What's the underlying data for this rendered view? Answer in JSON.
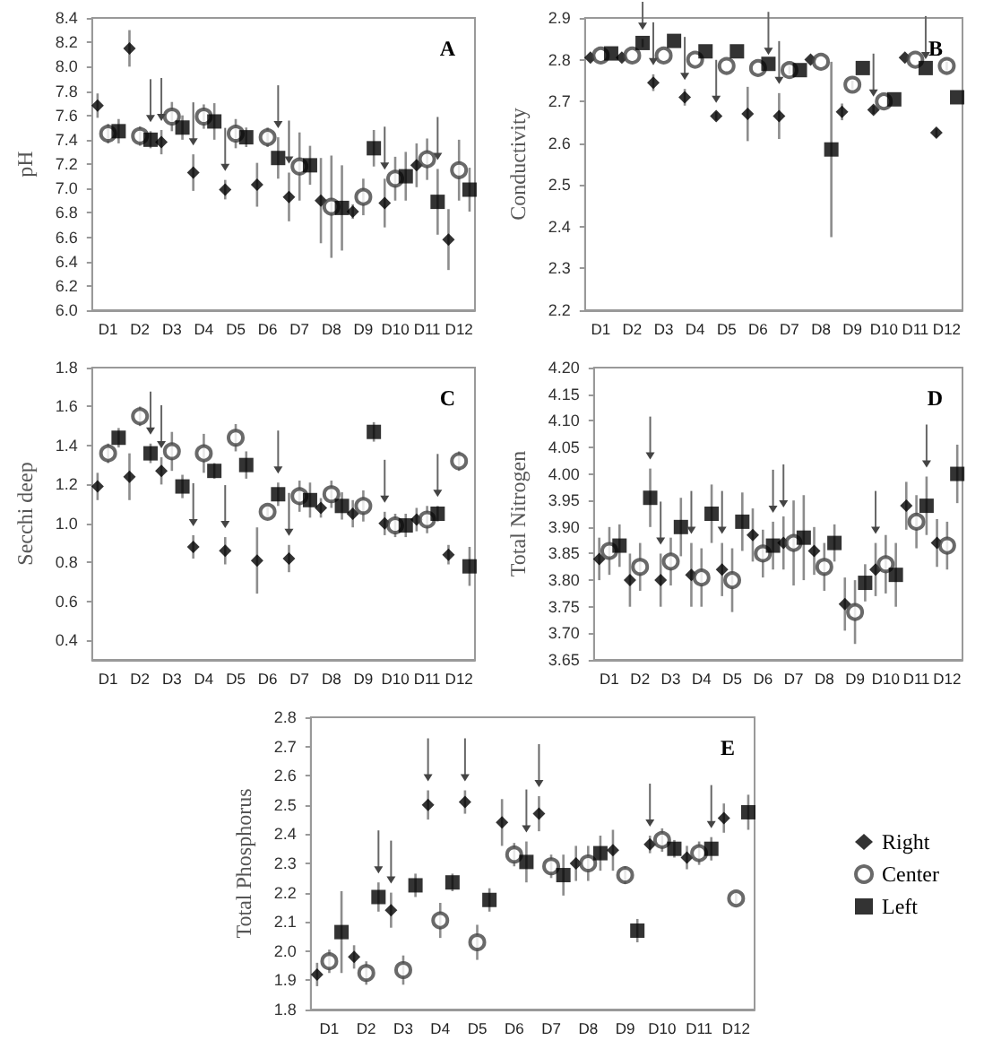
{
  "chart_data": [
    {
      "type": "scatter",
      "title": "A",
      "ylabel": "pH",
      "categories": [
        "D1",
        "D2",
        "D3",
        "D4",
        "D5",
        "D6",
        "D7",
        "D8",
        "D9",
        "D10",
        "D11",
        "D12"
      ],
      "ylim": [
        6.0,
        8.4
      ],
      "yticks": [
        {
          "value": 6.0,
          "label": "6.0"
        },
        6.2,
        6.4,
        6.6,
        6.8,
        {
          "value": 7.0,
          "label": "7.0"
        },
        7.2,
        7.4,
        7.6,
        7.8,
        {
          "value": 8.0,
          "label": "8.0"
        },
        8.2,
        8.4
      ],
      "grid": false,
      "legend": false,
      "series": [
        {
          "color": "#000000",
          "marker": "diamond",
          "values": [
            7.68,
            8.15,
            7.38,
            7.13,
            6.99,
            7.03,
            6.93,
            6.9,
            6.81,
            6.88,
            7.19,
            6.58
          ],
          "errors": [
            0.1,
            0.15,
            0.1,
            0.15,
            0.08,
            0.18,
            0.2,
            0.35,
            0.06,
            0.2,
            0.18,
            0.25
          ]
        },
        {
          "color": "#444444",
          "marker": "circle",
          "values": [
            7.45,
            7.43,
            7.59,
            7.59,
            7.45,
            7.42,
            7.18,
            6.85,
            6.93,
            7.08,
            7.24,
            7.15
          ],
          "errors": [
            0.08,
            0.08,
            0.12,
            0.1,
            0.12,
            0.08,
            0.28,
            0.42,
            0.15,
            0.18,
            0.17,
            0.25
          ]
        },
        {
          "color": "#000000",
          "marker": "square",
          "values": [
            7.47,
            7.4,
            7.5,
            7.55,
            7.42,
            7.25,
            7.19,
            6.84,
            7.33,
            7.1,
            6.89,
            6.99
          ],
          "errors": [
            0.1,
            0.07,
            0.1,
            0.15,
            0.08,
            0.17,
            0.16,
            0.35,
            0.15,
            0.2,
            0.27,
            0.18
          ]
        }
      ]
    },
    {
      "type": "scatter",
      "title": "B",
      "ylabel": "Conductivity",
      "categories": [
        "D1",
        "D2",
        "D3",
        "D4",
        "D5",
        "D6",
        "D7",
        "D8",
        "D9",
        "D10",
        "D11",
        "D12"
      ],
      "ylim": [
        2.2,
        2.9
      ],
      "yticks": [
        2.2,
        2.3,
        2.4,
        2.5,
        2.6,
        2.7,
        2.8,
        2.9
      ],
      "grid": false,
      "legend": false,
      "series": [
        {
          "color": "#000000",
          "marker": "diamond",
          "values": [
            2.805,
            2.805,
            2.745,
            2.71,
            2.665,
            2.67,
            2.665,
            2.8,
            2.675,
            2.68,
            2.805,
            2.625
          ],
          "errors": [
            null,
            null,
            0.02,
            0.02,
            0.01,
            0.065,
            0.055,
            null,
            0.02,
            0.01,
            null,
            0.01
          ]
        },
        {
          "color": "#444444",
          "marker": "circle",
          "values": [
            2.81,
            2.81,
            2.81,
            2.8,
            2.785,
            2.78,
            2.775,
            2.795,
            2.74,
            2.7,
            2.8,
            2.785
          ],
          "errors": [
            null,
            null,
            null,
            null,
            null,
            null,
            0.01,
            null,
            0.01,
            null,
            null,
            0.01
          ]
        },
        {
          "color": "#000000",
          "marker": "square",
          "values": [
            2.815,
            2.84,
            2.845,
            2.82,
            2.82,
            2.79,
            2.775,
            2.585,
            2.78,
            2.705,
            2.78,
            2.71
          ],
          "errors": [
            null,
            0.01,
            null,
            null,
            null,
            null,
            null,
            0.21,
            null,
            null,
            null,
            null
          ]
        }
      ]
    },
    {
      "type": "scatter",
      "title": "C",
      "ylabel": "Secchi deep",
      "categories": [
        "D1",
        "D2",
        "D3",
        "D4",
        "D5",
        "D6",
        "D7",
        "D8",
        "D9",
        "D10",
        "D11",
        "D12"
      ],
      "ylim": [
        0.3,
        1.8
      ],
      "yticks": [
        0.4,
        0.6,
        0.8,
        {
          "value": 1.0,
          "label": "1.0"
        },
        1.2,
        1.4,
        1.6,
        1.8
      ],
      "grid": false,
      "legend": false,
      "series": [
        {
          "color": "#000000",
          "marker": "diamond",
          "values": [
            1.19,
            1.24,
            1.27,
            0.88,
            0.86,
            0.81,
            0.82,
            1.08,
            1.05,
            1.0,
            1.02,
            0.84
          ],
          "errors": [
            0.07,
            0.12,
            0.07,
            0.06,
            0.07,
            0.17,
            0.07,
            0.05,
            0.07,
            0.06,
            0.06,
            0.05
          ]
        },
        {
          "color": "#444444",
          "marker": "circle",
          "values": [
            1.36,
            1.55,
            1.37,
            1.36,
            1.44,
            1.06,
            1.14,
            1.15,
            1.09,
            0.99,
            1.02,
            1.32
          ],
          "errors": [
            0.05,
            0.05,
            0.1,
            0.1,
            0.07,
            0.03,
            0.08,
            0.07,
            0.08,
            0.06,
            0.07,
            0.05
          ]
        },
        {
          "color": "#000000",
          "marker": "square",
          "values": [
            1.44,
            1.36,
            1.19,
            1.27,
            1.3,
            1.15,
            1.12,
            1.09,
            1.47,
            0.99,
            1.05,
            0.78
          ],
          "errors": [
            0.05,
            0.05,
            0.06,
            0.04,
            0.07,
            0.06,
            0.09,
            0.07,
            0.05,
            0.06,
            0.04,
            0.1
          ]
        }
      ]
    },
    {
      "type": "scatter",
      "title": "D",
      "ylabel": "Total Nitrogen",
      "categories": [
        "D1",
        "D2",
        "D3",
        "D4",
        "D5",
        "D6",
        "D7",
        "D8",
        "D9",
        "D10",
        "D11",
        "D12"
      ],
      "ylim": [
        3.65,
        4.2
      ],
      "yticks": [
        3.65,
        {
          "value": 3.7,
          "label": "3.70"
        },
        3.75,
        {
          "value": 3.8,
          "label": "3.80"
        },
        3.85,
        {
          "value": 3.9,
          "label": "3.90"
        },
        3.95,
        {
          "value": 4.0,
          "label": "4.00"
        },
        4.05,
        {
          "value": 4.1,
          "label": "4.10"
        },
        4.15,
        {
          "value": 4.2,
          "label": "4.20"
        }
      ],
      "grid": false,
      "legend": false,
      "series": [
        {
          "color": "#000000",
          "marker": "diamond",
          "values": [
            3.84,
            3.8,
            3.8,
            3.81,
            3.82,
            3.885,
            3.87,
            3.855,
            3.755,
            3.82,
            3.94,
            3.87
          ],
          "errors": [
            0.04,
            0.05,
            0.05,
            0.06,
            0.05,
            0.05,
            0.05,
            0.045,
            0.05,
            0.05,
            0.045,
            0.045
          ]
        },
        {
          "color": "#444444",
          "marker": "circle",
          "values": [
            3.855,
            3.825,
            3.835,
            3.805,
            3.8,
            3.85,
            3.87,
            3.825,
            3.74,
            3.83,
            3.91,
            3.865
          ],
          "errors": [
            0.045,
            0.045,
            0.045,
            0.055,
            0.06,
            0.045,
            0.08,
            0.045,
            0.06,
            0.055,
            0.05,
            0.045
          ]
        },
        {
          "color": "#000000",
          "marker": "square",
          "values": [
            3.865,
            3.955,
            3.9,
            3.925,
            3.91,
            3.865,
            3.88,
            3.87,
            3.795,
            3.81,
            3.94,
            4.0
          ],
          "errors": [
            0.04,
            0.055,
            0.055,
            0.055,
            0.055,
            0.045,
            0.08,
            0.035,
            0.035,
            0.06,
            0.055,
            0.055
          ]
        }
      ]
    },
    {
      "type": "scatter",
      "title": "E",
      "ylabel": "Total Phosphorus",
      "categories": [
        "D1",
        "D2",
        "D3",
        "D4",
        "D5",
        "D6",
        "D7",
        "D8",
        "D9",
        "D10",
        "D11",
        "D12"
      ],
      "ylim": [
        1.8,
        2.8
      ],
      "yticks": [
        1.8,
        1.9,
        {
          "value": 2.0,
          "label": "2.0"
        },
        2.1,
        2.2,
        2.3,
        2.4,
        2.5,
        2.6,
        2.7,
        2.8
      ],
      "grid": false,
      "legend": "right",
      "series": [
        {
          "name": "Right",
          "color": "#000000",
          "marker": "diamond",
          "values": [
            1.92,
            1.98,
            2.14,
            2.5,
            2.51,
            2.44,
            2.47,
            2.3,
            2.345,
            2.365,
            2.32,
            2.455
          ],
          "errors": [
            0.04,
            0.04,
            0.06,
            0.05,
            0.04,
            0.08,
            0.06,
            0.06,
            0.07,
            0.03,
            0.04,
            0.05
          ]
        },
        {
          "name": "Center",
          "color": "#444444",
          "marker": "circle",
          "values": [
            1.965,
            1.925,
            1.935,
            2.105,
            2.03,
            2.33,
            2.29,
            2.3,
            2.26,
            2.38,
            2.335,
            2.18
          ],
          "errors": [
            0.04,
            0.04,
            0.05,
            0.06,
            0.06,
            0.04,
            0.04,
            0.06,
            0.03,
            0.04,
            0.04,
            0.02
          ]
        },
        {
          "name": "Left",
          "color": "#000000",
          "marker": "square",
          "values": [
            2.065,
            2.185,
            2.225,
            2.235,
            2.175,
            2.305,
            2.26,
            2.335,
            2.07,
            2.35,
            2.35,
            2.475
          ],
          "errors": [
            0.14,
            0.05,
            0.04,
            0.03,
            0.04,
            0.07,
            0.07,
            0.06,
            0.04,
            0.03,
            0.04,
            0.06
          ]
        }
      ]
    }
  ]
}
